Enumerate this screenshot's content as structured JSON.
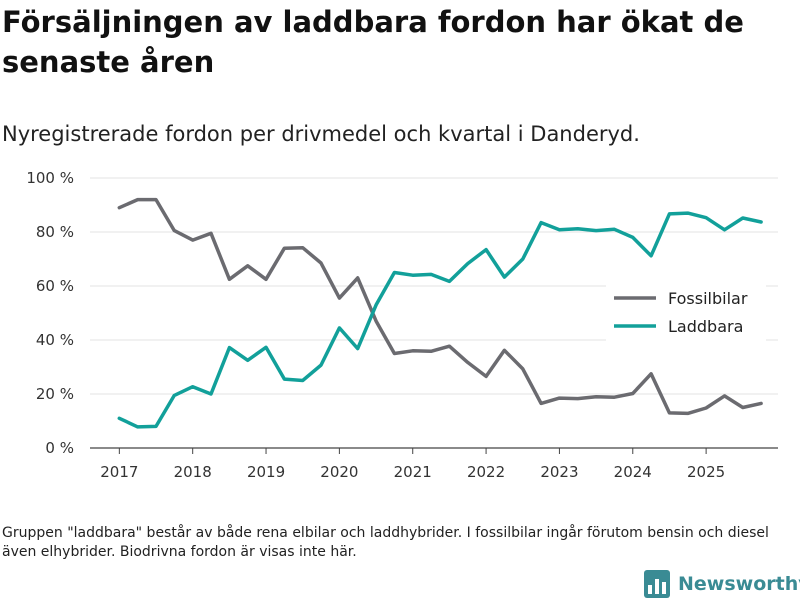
{
  "title": "Försäljningen av laddbara fordon har ökat de senaste åren",
  "subtitle": "Nyregistrerade fordon per drivmedel och kvartal i Danderyd.",
  "footnote": "Gruppen \"laddbara\" består av både rena elbilar och laddhybrider. I fossilbilar ingår förutom bensin och diesel även elhybrider. Biodrivna fordon är visas inte här.",
  "brand": {
    "name": "Newsworthy",
    "logo_icon": "newsworthy-bar-chart-icon",
    "color": "#3a8b94"
  },
  "chart_data": {
    "type": "line",
    "title": "Försäljningen av laddbara fordon har ökat de senaste åren",
    "subtitle": "Nyregistrerade fordon per drivmedel och kvartal i Danderyd.",
    "xlabel": "",
    "ylabel": "",
    "x": [
      2017.0,
      2017.25,
      2017.5,
      2017.75,
      2018.0,
      2018.25,
      2018.5,
      2018.75,
      2019.0,
      2019.25,
      2019.5,
      2019.75,
      2020.0,
      2020.25,
      2020.5,
      2020.75,
      2021.0,
      2021.25,
      2021.5,
      2021.75,
      2022.0,
      2022.25,
      2022.5,
      2022.75,
      2023.0,
      2023.25,
      2023.5,
      2023.75,
      2024.0,
      2024.25,
      2024.5,
      2024.75,
      2025.0,
      2025.25,
      2025.5,
      2025.75
    ],
    "xlim": [
      2016.6,
      2025.98
    ],
    "ylim": [
      0,
      100
    ],
    "y_ticks": [
      0,
      20,
      40,
      60,
      80,
      100
    ],
    "y_tick_labels": [
      "0 %",
      "20 %",
      "40 %",
      "60 %",
      "80 %",
      "100 %"
    ],
    "x_ticks": [
      2017,
      2018,
      2019,
      2020,
      2021,
      2022,
      2023,
      2024,
      2025
    ],
    "x_tick_labels": [
      "2017",
      "2018",
      "2019",
      "2020",
      "2021",
      "2022",
      "2023",
      "2024",
      "2025"
    ],
    "grid": true,
    "legend_position": "right",
    "series": [
      {
        "name": "Fossilbilar",
        "color": "#6b6b70",
        "values": [
          89,
          92,
          92,
          80.5,
          77,
          79.5,
          62.5,
          67.5,
          62.5,
          74,
          74.2,
          68.5,
          55.5,
          63,
          47,
          35,
          36,
          35.8,
          37.7,
          31.7,
          26.5,
          36.2,
          29.3,
          16.5,
          18.5,
          18.3,
          19,
          18.8,
          20.2,
          27.5,
          13,
          12.8,
          14.8,
          19.3,
          15,
          16.5
        ]
      },
      {
        "name": "Laddbara",
        "color": "#12a09a",
        "values": [
          11,
          7.8,
          8,
          19.5,
          22.7,
          20,
          37.2,
          32.5,
          37.3,
          25.5,
          25,
          30.7,
          44.5,
          36.8,
          53,
          65,
          64,
          64.3,
          61.7,
          68.3,
          73.5,
          63.3,
          70,
          83.5,
          80.8,
          81.2,
          80.5,
          81,
          78,
          71.2,
          86.7,
          87,
          85.3,
          80.8,
          85.2,
          83.7
        ]
      }
    ]
  }
}
